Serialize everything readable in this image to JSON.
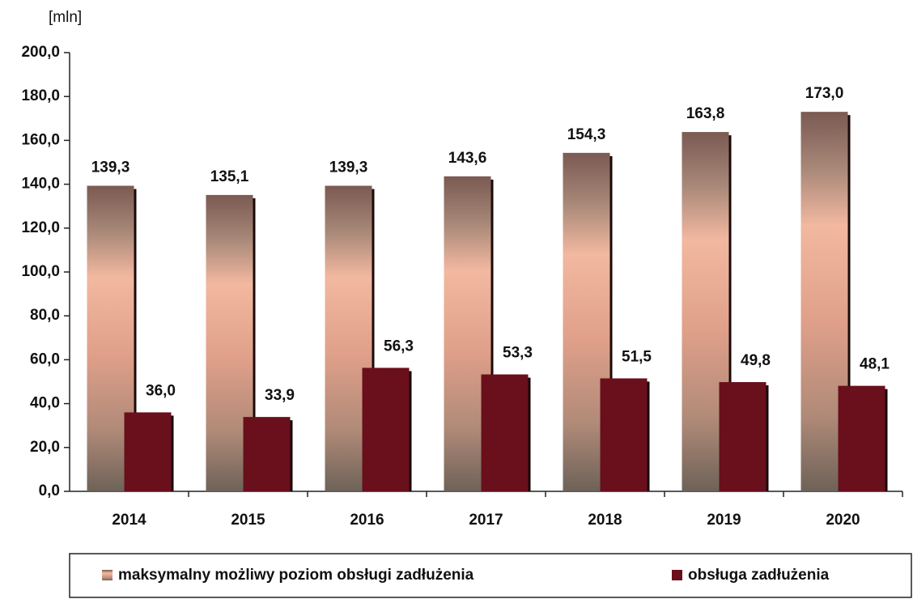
{
  "chart_data": {
    "type": "bar",
    "y_label": "[mln]",
    "categories": [
      "2014",
      "2015",
      "2016",
      "2017",
      "2018",
      "2019",
      "2020"
    ],
    "series": [
      {
        "name": "maksymalny możliwy poziom obsługi zadłużenia",
        "color": "#e0a08a",
        "values": [
          139.3,
          135.1,
          139.3,
          143.6,
          154.3,
          163.8,
          173.0
        ],
        "value_labels": [
          "139,3",
          "135,1",
          "139,3",
          "143,6",
          "154,3",
          "163,8",
          "173,0"
        ]
      },
      {
        "name": "obsługa zadłużenia",
        "color": "#6a0f1c",
        "values": [
          36.0,
          33.9,
          56.3,
          53.3,
          51.5,
          49.8,
          48.1
        ],
        "value_labels": [
          "36,0",
          "33,9",
          "56,3",
          "53,3",
          "51,5",
          "49,8",
          "48,1"
        ]
      }
    ],
    "ylim": [
      0,
      200
    ],
    "yticks": [
      {
        "value": 0,
        "label": "0,0"
      },
      {
        "value": 20,
        "label": "20,0"
      },
      {
        "value": 40,
        "label": "40,0"
      },
      {
        "value": 60,
        "label": "60,0"
      },
      {
        "value": 80,
        "label": "80,0"
      },
      {
        "value": 100,
        "label": "100,0"
      },
      {
        "value": 120,
        "label": "120,0"
      },
      {
        "value": 140,
        "label": "140,0"
      },
      {
        "value": 160,
        "label": "160,0"
      },
      {
        "value": 180,
        "label": "180,0"
      },
      {
        "value": 200,
        "label": "200,0"
      }
    ]
  }
}
